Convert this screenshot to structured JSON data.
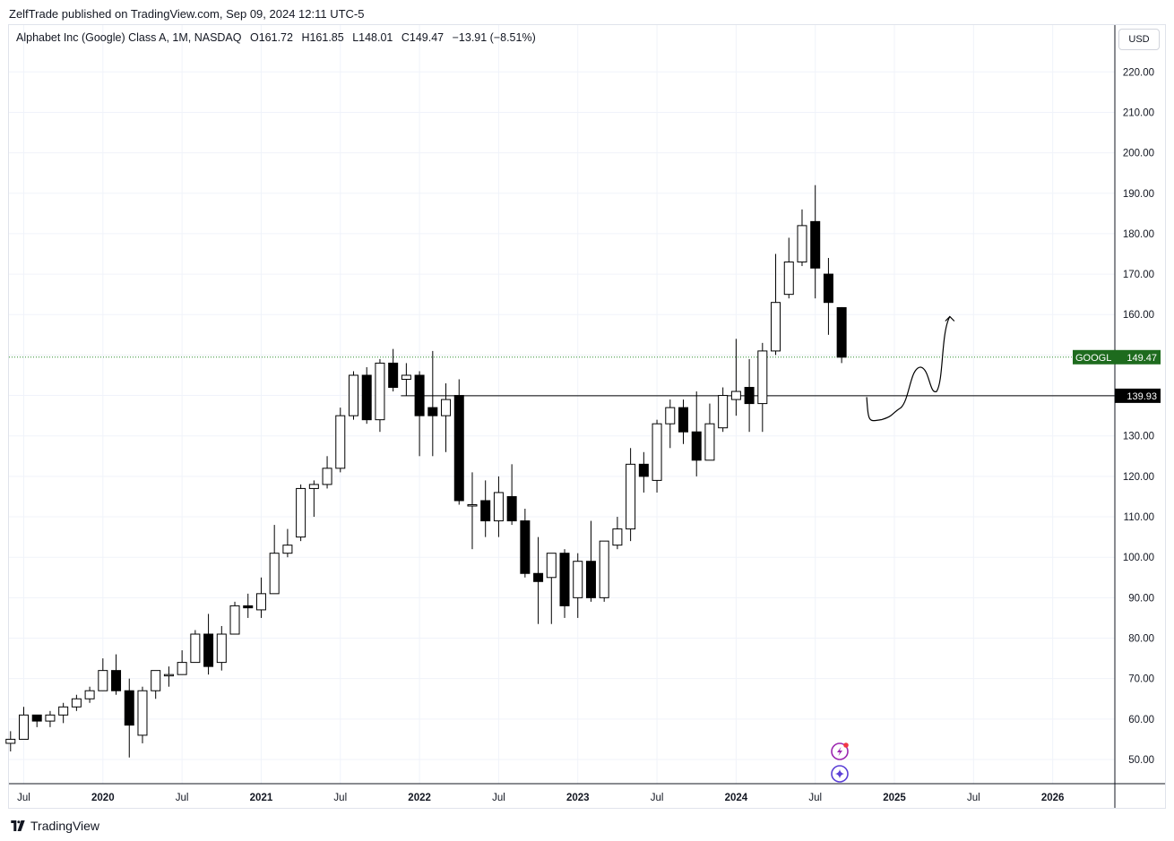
{
  "header": {
    "published_by": "ZelfTrade published on TradingView.com, Sep 09, 2024 12:11 UTC-5"
  },
  "legend": {
    "symbol": "Alphabet Inc (Google) Class A, 1M, NASDAQ",
    "open_label": "O",
    "open": "161.72",
    "high_label": "H",
    "high": "161.85",
    "low_label": "L",
    "low": "148.01",
    "close_label": "C",
    "close": "149.47",
    "change": "−13.91 (−8.51%)"
  },
  "currency": "USD",
  "footer": {
    "brand": "TradingView"
  },
  "colors": {
    "up_fill": "#ffffff",
    "down_fill": "#000000",
    "wick": "#000000",
    "grid": "#f0f3fa",
    "last_price_tag": "#1e6b1e",
    "horizontal_line_tag": "#000000",
    "last_price_dotted": "#2e8b2e"
  },
  "icons": [
    "lightning-badge-icon",
    "sparkle-badge-icon",
    "tradingview-logo-icon"
  ],
  "chart_data": {
    "type": "candlestick",
    "interval": "1M",
    "y_axis_ticks": [
      50,
      60,
      70,
      80,
      90,
      100,
      110,
      120,
      130,
      140,
      150,
      160,
      170,
      180,
      190,
      200,
      210,
      220
    ],
    "y_axis_tick_labels": [
      "50.00",
      "60.00",
      "70.00",
      "80.00",
      "90.00",
      "100.00",
      "110.00",
      "120.00",
      "130.00",
      "140.00",
      "150.00",
      "160.00",
      "170.00",
      "180.00",
      "190.00",
      "200.00",
      "210.00",
      "220.00"
    ],
    "x_axis_labels": [
      {
        "month": "2019-07",
        "label": "Jul",
        "bold": false
      },
      {
        "month": "2020-01",
        "label": "2020",
        "bold": true
      },
      {
        "month": "2020-07",
        "label": "Jul",
        "bold": false
      },
      {
        "month": "2021-01",
        "label": "2021",
        "bold": true
      },
      {
        "month": "2021-07",
        "label": "Jul",
        "bold": false
      },
      {
        "month": "2022-01",
        "label": "2022",
        "bold": true
      },
      {
        "month": "2022-07",
        "label": "Jul",
        "bold": false
      },
      {
        "month": "2023-01",
        "label": "2023",
        "bold": true
      },
      {
        "month": "2023-07",
        "label": "Jul",
        "bold": false
      },
      {
        "month": "2024-01",
        "label": "2024",
        "bold": true
      },
      {
        "month": "2024-07",
        "label": "Jul",
        "bold": false
      },
      {
        "month": "2025-01",
        "label": "2025",
        "bold": true
      },
      {
        "month": "2025-07",
        "label": "Jul",
        "bold": false
      },
      {
        "month": "2026-01",
        "label": "2026",
        "bold": true
      }
    ],
    "candles": [
      {
        "m": "2019-06",
        "o": 54,
        "h": 57,
        "l": 52,
        "c": 55
      },
      {
        "m": "2019-07",
        "o": 55,
        "h": 63,
        "l": 55,
        "c": 61
      },
      {
        "m": "2019-08",
        "o": 61,
        "h": 61,
        "l": 58,
        "c": 59.5
      },
      {
        "m": "2019-09",
        "o": 59.5,
        "h": 62,
        "l": 58,
        "c": 61
      },
      {
        "m": "2019-10",
        "o": 61,
        "h": 64,
        "l": 59,
        "c": 63
      },
      {
        "m": "2019-11",
        "o": 63,
        "h": 66,
        "l": 62,
        "c": 65
      },
      {
        "m": "2019-12",
        "o": 65,
        "h": 68,
        "l": 64,
        "c": 67
      },
      {
        "m": "2020-01",
        "o": 67,
        "h": 75,
        "l": 67,
        "c": 72
      },
      {
        "m": "2020-02",
        "o": 72,
        "h": 76,
        "l": 66,
        "c": 67
      },
      {
        "m": "2020-03",
        "o": 67,
        "h": 70,
        "l": 50.5,
        "c": 58.5
      },
      {
        "m": "2020-04",
        "o": 56,
        "h": 68,
        "l": 54,
        "c": 67
      },
      {
        "m": "2020-05",
        "o": 67,
        "h": 72,
        "l": 65,
        "c": 72
      },
      {
        "m": "2020-06",
        "o": 71,
        "h": 73,
        "l": 68,
        "c": 71
      },
      {
        "m": "2020-07",
        "o": 71,
        "h": 77,
        "l": 71,
        "c": 74
      },
      {
        "m": "2020-08",
        "o": 74,
        "h": 82,
        "l": 74,
        "c": 81
      },
      {
        "m": "2020-09",
        "o": 81,
        "h": 86,
        "l": 71,
        "c": 73
      },
      {
        "m": "2020-10",
        "o": 74,
        "h": 83,
        "l": 72,
        "c": 81
      },
      {
        "m": "2020-11",
        "o": 81,
        "h": 89,
        "l": 81,
        "c": 88
      },
      {
        "m": "2020-12",
        "o": 88,
        "h": 91,
        "l": 85,
        "c": 87.5
      },
      {
        "m": "2021-01",
        "o": 87,
        "h": 95,
        "l": 85,
        "c": 91
      },
      {
        "m": "2021-02",
        "o": 91,
        "h": 108,
        "l": 91,
        "c": 101
      },
      {
        "m": "2021-03",
        "o": 101,
        "h": 107,
        "l": 100,
        "c": 103
      },
      {
        "m": "2021-04",
        "o": 105,
        "h": 118,
        "l": 104,
        "c": 117
      },
      {
        "m": "2021-05",
        "o": 117,
        "h": 119,
        "l": 110,
        "c": 118
      },
      {
        "m": "2021-06",
        "o": 118,
        "h": 125,
        "l": 117,
        "c": 122
      },
      {
        "m": "2021-07",
        "o": 122,
        "h": 137,
        "l": 121,
        "c": 135
      },
      {
        "m": "2021-08",
        "o": 135,
        "h": 146,
        "l": 134,
        "c": 145
      },
      {
        "m": "2021-09",
        "o": 145,
        "h": 147,
        "l": 133,
        "c": 134
      },
      {
        "m": "2021-10",
        "o": 134,
        "h": 149,
        "l": 131,
        "c": 148
      },
      {
        "m": "2021-11",
        "o": 148,
        "h": 151.5,
        "l": 141,
        "c": 142
      },
      {
        "m": "2021-12",
        "o": 144,
        "h": 148,
        "l": 140,
        "c": 145
      },
      {
        "m": "2022-01",
        "o": 145,
        "h": 146,
        "l": 125,
        "c": 135
      },
      {
        "m": "2022-02",
        "o": 137,
        "h": 151,
        "l": 125,
        "c": 135
      },
      {
        "m": "2022-03",
        "o": 135,
        "h": 143,
        "l": 126,
        "c": 139
      },
      {
        "m": "2022-04",
        "o": 140,
        "h": 144,
        "l": 113,
        "c": 114
      },
      {
        "m": "2022-05",
        "o": 113,
        "h": 121,
        "l": 102,
        "c": 113
      },
      {
        "m": "2022-06",
        "o": 114,
        "h": 119,
        "l": 105,
        "c": 109
      },
      {
        "m": "2022-07",
        "o": 109,
        "h": 120,
        "l": 105,
        "c": 116
      },
      {
        "m": "2022-08",
        "o": 115,
        "h": 123,
        "l": 108,
        "c": 109
      },
      {
        "m": "2022-09",
        "o": 109,
        "h": 112,
        "l": 95,
        "c": 96
      },
      {
        "m": "2022-10",
        "o": 96,
        "h": 105,
        "l": 83.5,
        "c": 94
      },
      {
        "m": "2022-11",
        "o": 95,
        "h": 101,
        "l": 83.5,
        "c": 101
      },
      {
        "m": "2022-12",
        "o": 101,
        "h": 102,
        "l": 85,
        "c": 88
      },
      {
        "m": "2023-01",
        "o": 90,
        "h": 101,
        "l": 85,
        "c": 99
      },
      {
        "m": "2023-02",
        "o": 99,
        "h": 109,
        "l": 89,
        "c": 90
      },
      {
        "m": "2023-03",
        "o": 90,
        "h": 104,
        "l": 89,
        "c": 104
      },
      {
        "m": "2023-04",
        "o": 103,
        "h": 110,
        "l": 102,
        "c": 107
      },
      {
        "m": "2023-05",
        "o": 107,
        "h": 127,
        "l": 104,
        "c": 123
      },
      {
        "m": "2023-06",
        "o": 123,
        "h": 126,
        "l": 116,
        "c": 120
      },
      {
        "m": "2023-07",
        "o": 119,
        "h": 134,
        "l": 116,
        "c": 133
      },
      {
        "m": "2023-08",
        "o": 133,
        "h": 139,
        "l": 127,
        "c": 137
      },
      {
        "m": "2023-09",
        "o": 137,
        "h": 139,
        "l": 128,
        "c": 131
      },
      {
        "m": "2023-10",
        "o": 131,
        "h": 141,
        "l": 120,
        "c": 124
      },
      {
        "m": "2023-11",
        "o": 124,
        "h": 138,
        "l": 124,
        "c": 133
      },
      {
        "m": "2023-12",
        "o": 132,
        "h": 142,
        "l": 131,
        "c": 140
      },
      {
        "m": "2024-01",
        "o": 139,
        "h": 154,
        "l": 135,
        "c": 141
      },
      {
        "m": "2024-02",
        "o": 142,
        "h": 149,
        "l": 131,
        "c": 138
      },
      {
        "m": "2024-03",
        "o": 138,
        "h": 153,
        "l": 131,
        "c": 151
      },
      {
        "m": "2024-04",
        "o": 151,
        "h": 175,
        "l": 150,
        "c": 163
      },
      {
        "m": "2024-05",
        "o": 165,
        "h": 179,
        "l": 164,
        "c": 173
      },
      {
        "m": "2024-06",
        "o": 173,
        "h": 186,
        "l": 172,
        "c": 182
      },
      {
        "m": "2024-07",
        "o": 183,
        "h": 192,
        "l": 164,
        "c": 171.5
      },
      {
        "m": "2024-08",
        "o": 170,
        "h": 174,
        "l": 155,
        "c": 163
      },
      {
        "m": "2024-09",
        "o": 161.72,
        "h": 161.85,
        "l": 148.01,
        "c": 149.47
      }
    ],
    "price_tags": [
      {
        "symbol": "GOOGL",
        "value": "149.47",
        "price": 149.47,
        "style": "last-price"
      },
      {
        "symbol": "",
        "value": "139.93",
        "price": 139.93,
        "style": "horizontal-line"
      }
    ],
    "horizontal_line": {
      "price": 139.93,
      "from_month": "2021-12"
    },
    "projection_path": [
      {
        "m": "2024-10.9",
        "p": 139.5
      },
      {
        "m": "2024-12.0",
        "p": 134
      },
      {
        "m": "2025-01.5",
        "p": 137
      },
      {
        "m": "2025-03.0",
        "p": 147
      },
      {
        "m": "2025-04.2",
        "p": 141
      },
      {
        "m": "2025-05.2",
        "p": 159.5
      }
    ]
  }
}
